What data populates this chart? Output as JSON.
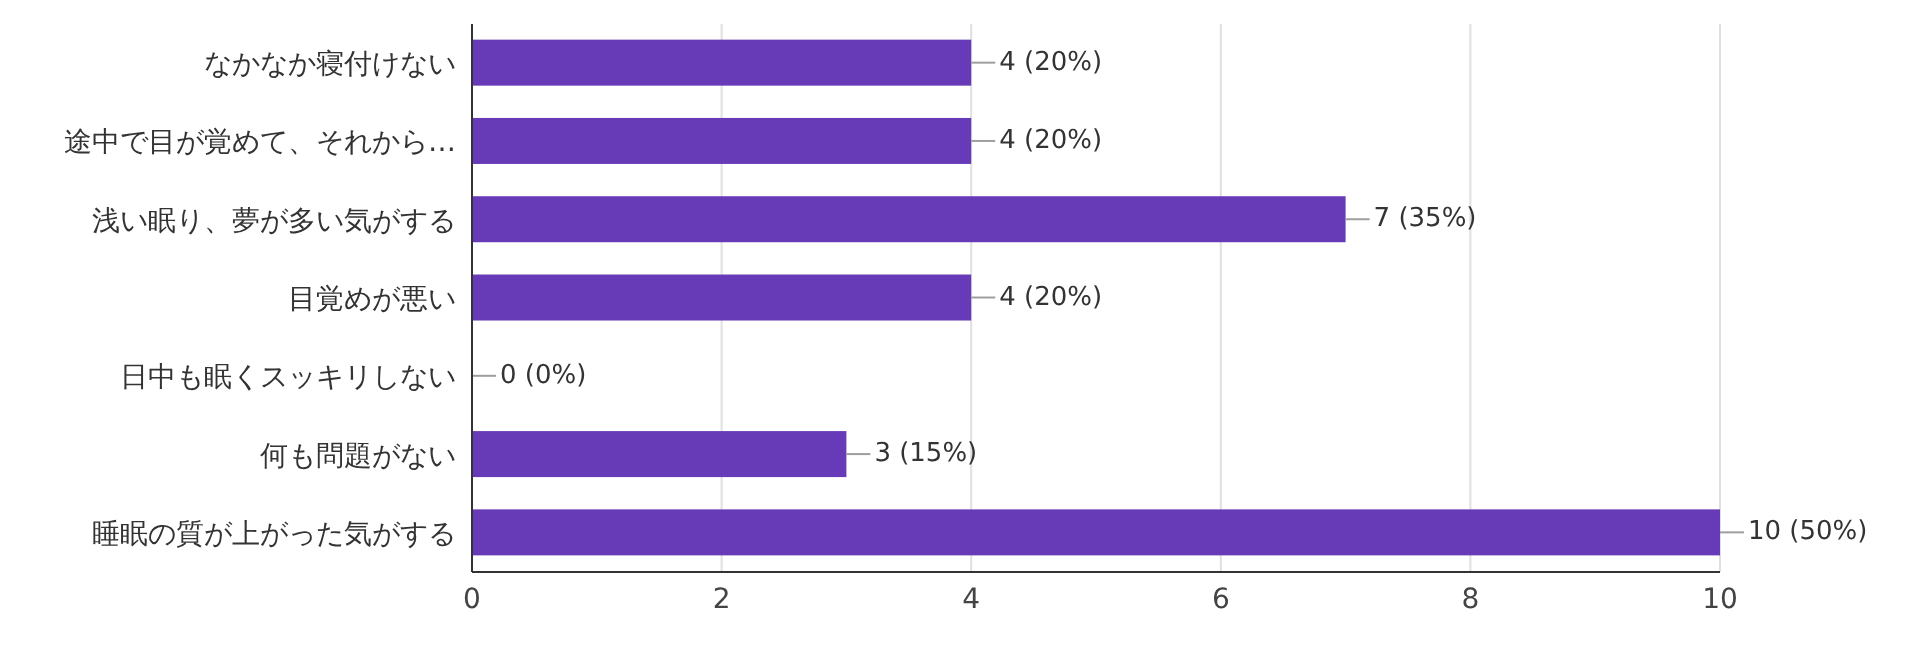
{
  "chart_data": {
    "type": "bar",
    "orientation": "horizontal",
    "categories": [
      "なかなか寝付けない",
      "途中で目が覚めて、それから…",
      "浅い眠り、夢が多い気がする",
      "目覚めが悪い",
      "日中も眠くスッキリしない",
      "何も問題がない",
      "睡眠の質が上がった気がする"
    ],
    "values": [
      4,
      4,
      7,
      4,
      0,
      3,
      10
    ],
    "value_labels": [
      "4 (20%)",
      "4 (20%)",
      "7 (35%)",
      "4 (20%)",
      "0 (0%)",
      "3 (15%)",
      "10 (50%)"
    ],
    "color": "#673ab7",
    "xlim": [
      0,
      10
    ],
    "xticks": [
      0,
      2,
      4,
      6,
      8,
      10
    ],
    "grid": "x",
    "legend": false
  }
}
